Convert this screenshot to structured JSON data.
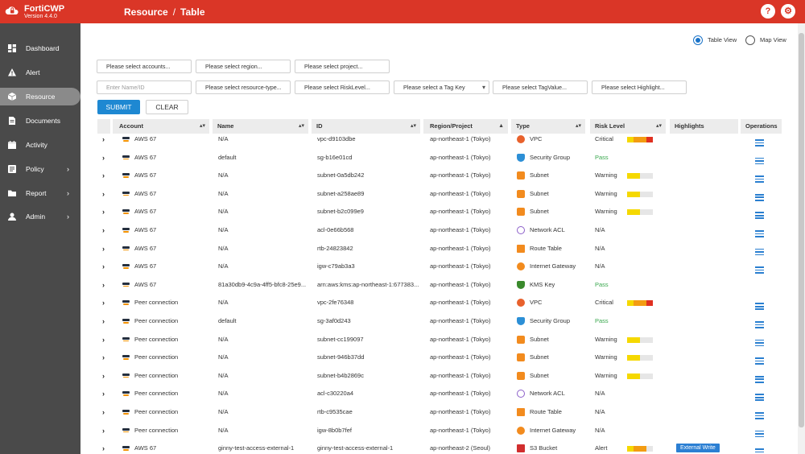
{
  "app": {
    "name": "FortiCWP",
    "version": "Version 4.4.0"
  },
  "breadcrumb": {
    "section": "Resource",
    "separator": "/",
    "page": "Table"
  },
  "header_buttons": {
    "help": "?",
    "settings": "⚙"
  },
  "sidebar": {
    "items": [
      {
        "label": "Dashboard",
        "icon": "dashboard-icon",
        "submenu": false
      },
      {
        "label": "Alert",
        "icon": "alert-icon",
        "submenu": false
      },
      {
        "label": "Resource",
        "icon": "cube-icon",
        "submenu": false,
        "active": true
      },
      {
        "label": "Documents",
        "icon": "document-icon",
        "submenu": false
      },
      {
        "label": "Activity",
        "icon": "calendar-icon",
        "submenu": false
      },
      {
        "label": "Policy",
        "icon": "policy-icon",
        "submenu": true
      },
      {
        "label": "Report",
        "icon": "folder-icon",
        "submenu": true
      },
      {
        "label": "Admin",
        "icon": "user-icon",
        "submenu": true
      }
    ]
  },
  "view_toggle": {
    "table_view": "Table View",
    "map_view": "Map View",
    "selected": "table_view"
  },
  "filters": {
    "accounts": "Please select accounts...",
    "region": "Please select region...",
    "project": "Please select project...",
    "name_id_placeholder": "Enter Name/ID",
    "resource_type": "Please select resource-type...",
    "risk_level": "Please select RiskLevel...",
    "tag_key": "Please select a Tag Key",
    "tag_value": "Please select TagValue...",
    "highlight": "Please select Highlight..."
  },
  "actions": {
    "submit": "SUBMIT",
    "clear": "CLEAR"
  },
  "table": {
    "columns": {
      "account": "Account",
      "name": "Name",
      "id": "ID",
      "region": "Region/Project",
      "type": "Type",
      "risk": "Risk Level",
      "highlights": "Highlights",
      "operations": "Operations"
    },
    "rows": [
      {
        "account": "AWS 67",
        "name": "N/A",
        "id": "vpc-d9103dbe",
        "region": "ap-northeast-1 (Tokyo)",
        "type": "VPC",
        "type_icon": "vpc",
        "risk": "Critical",
        "risk_level": 4,
        "highlight": "",
        "ops": true
      },
      {
        "account": "AWS 67",
        "name": "default",
        "id": "sg-b16e01cd",
        "region": "ap-northeast-1 (Tokyo)",
        "type": "Security Group",
        "type_icon": "sg",
        "risk": "Pass",
        "risk_level": 0,
        "highlight": "",
        "ops": true
      },
      {
        "account": "AWS 67",
        "name": "N/A",
        "id": "subnet-0a5db242",
        "region": "ap-northeast-1 (Tokyo)",
        "type": "Subnet",
        "type_icon": "subnet",
        "risk": "Warning",
        "risk_level": 2,
        "highlight": "",
        "ops": true
      },
      {
        "account": "AWS 67",
        "name": "N/A",
        "id": "subnet-a258ae89",
        "region": "ap-northeast-1 (Tokyo)",
        "type": "Subnet",
        "type_icon": "subnet",
        "risk": "Warning",
        "risk_level": 2,
        "highlight": "",
        "ops": true
      },
      {
        "account": "AWS 67",
        "name": "N/A",
        "id": "subnet-b2c099e9",
        "region": "ap-northeast-1 (Tokyo)",
        "type": "Subnet",
        "type_icon": "subnet",
        "risk": "Warning",
        "risk_level": 2,
        "highlight": "",
        "ops": true
      },
      {
        "account": "AWS 67",
        "name": "N/A",
        "id": "acl-0e66b568",
        "region": "ap-northeast-1 (Tokyo)",
        "type": "Network ACL",
        "type_icon": "acl",
        "risk": "N/A",
        "risk_level": -1,
        "highlight": "",
        "ops": true
      },
      {
        "account": "AWS 67",
        "name": "N/A",
        "id": "rtb-24823842",
        "region": "ap-northeast-1 (Tokyo)",
        "type": "Route Table",
        "type_icon": "rt",
        "risk": "N/A",
        "risk_level": -1,
        "highlight": "",
        "ops": true
      },
      {
        "account": "AWS 67",
        "name": "N/A",
        "id": "igw-c79ab3a3",
        "region": "ap-northeast-1 (Tokyo)",
        "type": "Internet Gateway",
        "type_icon": "igw",
        "risk": "N/A",
        "risk_level": -1,
        "highlight": "",
        "ops": true
      },
      {
        "account": "AWS 67",
        "name": "81a30db9-4c9a-4ff5-bfc8-25e9...",
        "id": "arn:aws:kms:ap-northeast-1:677383...",
        "region": "ap-northeast-1 (Tokyo)",
        "type": "KMS Key",
        "type_icon": "kms",
        "risk": "Pass",
        "risk_level": 0,
        "highlight": "",
        "ops": false
      },
      {
        "account": "Peer connection",
        "name": "N/A",
        "id": "vpc-2fe76348",
        "region": "ap-northeast-1 (Tokyo)",
        "type": "VPC",
        "type_icon": "vpc",
        "risk": "Critical",
        "risk_level": 4,
        "highlight": "",
        "ops": true
      },
      {
        "account": "Peer connection",
        "name": "default",
        "id": "sg-3af0d243",
        "region": "ap-northeast-1 (Tokyo)",
        "type": "Security Group",
        "type_icon": "sg",
        "risk": "Pass",
        "risk_level": 0,
        "highlight": "",
        "ops": true
      },
      {
        "account": "Peer connection",
        "name": "N/A",
        "id": "subnet-cc199097",
        "region": "ap-northeast-1 (Tokyo)",
        "type": "Subnet",
        "type_icon": "subnet",
        "risk": "Warning",
        "risk_level": 2,
        "highlight": "",
        "ops": true
      },
      {
        "account": "Peer connection",
        "name": "N/A",
        "id": "subnet-946b37dd",
        "region": "ap-northeast-1 (Tokyo)",
        "type": "Subnet",
        "type_icon": "subnet",
        "risk": "Warning",
        "risk_level": 2,
        "highlight": "",
        "ops": true
      },
      {
        "account": "Peer connection",
        "name": "N/A",
        "id": "subnet-b4b2869c",
        "region": "ap-northeast-1 (Tokyo)",
        "type": "Subnet",
        "type_icon": "subnet",
        "risk": "Warning",
        "risk_level": 2,
        "highlight": "",
        "ops": true
      },
      {
        "account": "Peer connection",
        "name": "N/A",
        "id": "acl-c30220a4",
        "region": "ap-northeast-1 (Tokyo)",
        "type": "Network ACL",
        "type_icon": "acl",
        "risk": "N/A",
        "risk_level": -1,
        "highlight": "",
        "ops": true
      },
      {
        "account": "Peer connection",
        "name": "N/A",
        "id": "rtb-c9535cae",
        "region": "ap-northeast-1 (Tokyo)",
        "type": "Route Table",
        "type_icon": "rt",
        "risk": "N/A",
        "risk_level": -1,
        "highlight": "",
        "ops": true
      },
      {
        "account": "Peer connection",
        "name": "N/A",
        "id": "igw-8b0b7fef",
        "region": "ap-northeast-1 (Tokyo)",
        "type": "Internet Gateway",
        "type_icon": "igw",
        "risk": "N/A",
        "risk_level": -1,
        "highlight": "",
        "ops": true
      },
      {
        "account": "AWS 67",
        "name": "ginny-test-access-external-1",
        "id": "ginny-test-access-external-1",
        "region": "ap-northeast-2 (Seoul)",
        "type": "S3 Bucket",
        "type_icon": "s3",
        "risk": "Alert",
        "risk_level": 3,
        "highlight": "External Write",
        "ops": true
      }
    ]
  },
  "colors": {
    "brand_red": "#da3627",
    "sidebar_bg": "#4a4a4a",
    "submit_blue": "#1e88d2",
    "risk_yellow": "#f5d800",
    "risk_orange": "#f39c12",
    "risk_red": "#e03020",
    "risk_empty": "#e6e6e6",
    "pass_green": "#3aa84e"
  }
}
